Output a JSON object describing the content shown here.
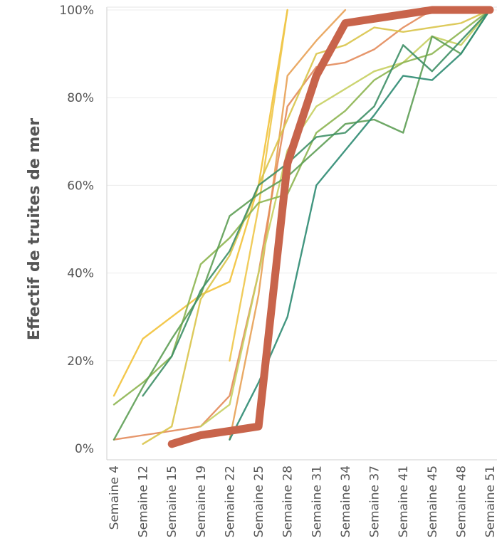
{
  "chart_data": {
    "type": "line",
    "title": "",
    "xlabel": "",
    "ylabel": "Effectif de truites de mer",
    "categories": [
      "Semaine 4",
      "Semaine 12",
      "Semaine 15",
      "Semaine 19",
      "Semaine 22",
      "Semaine 25",
      "Semaine 28",
      "Semaine 31",
      "Semaine 34",
      "Semaine 37",
      "Semaine 41",
      "Semaine 45",
      "Semaine 48",
      "Semaine 51"
    ],
    "ylim": [
      0,
      100
    ],
    "y_tick_labels": [
      "0%",
      "20%",
      "40%",
      "60%",
      "80%",
      "100%"
    ],
    "y_tick_values": [
      0,
      20,
      40,
      60,
      80,
      100
    ],
    "grid": true,
    "legend": "none",
    "series": [
      {
        "color": "#f2c23a",
        "values": [
          12,
          25,
          30,
          35,
          38,
          60,
          100,
          null,
          null,
          null,
          null,
          null,
          null,
          null
        ]
      },
      {
        "color": "#eec64a",
        "values": [
          null,
          null,
          null,
          null,
          20,
          55,
          100,
          null,
          null,
          null,
          null,
          null,
          null,
          null
        ]
      },
      {
        "color": "#e8a155",
        "values": [
          null,
          null,
          null,
          null,
          2,
          35,
          85,
          93,
          100,
          null,
          null,
          null,
          null,
          null
        ]
      },
      {
        "color": "#e38b5b",
        "values": [
          2,
          3,
          4,
          5,
          12,
          40,
          78,
          87,
          88,
          91,
          96,
          100,
          100,
          100
        ]
      },
      {
        "color": "#d9c44a",
        "values": [
          null,
          1,
          5,
          34,
          44,
          60,
          75,
          90,
          92,
          96,
          95,
          96,
          97,
          100
        ]
      },
      {
        "color": "#c7cf60",
        "values": [
          null,
          null,
          null,
          5,
          10,
          40,
          68,
          78,
          82,
          86,
          88,
          94,
          92,
          100
        ]
      },
      {
        "color": "#8db551",
        "values": [
          10,
          15,
          21,
          42,
          48,
          56,
          58,
          72,
          77,
          84,
          88,
          90,
          95,
          100
        ]
      },
      {
        "color": "#5e9e55",
        "values": [
          2,
          14,
          25,
          35,
          53,
          58,
          62,
          68,
          74,
          75,
          72,
          94,
          90,
          100
        ]
      },
      {
        "color": "#3e8f66",
        "values": [
          null,
          12,
          21,
          36,
          45,
          60,
          65,
          71,
          72,
          78,
          92,
          86,
          93,
          100
        ]
      },
      {
        "color": "#2e8b72",
        "values": [
          null,
          null,
          null,
          null,
          2,
          15,
          30,
          60,
          68,
          76,
          85,
          84,
          90,
          100
        ]
      },
      {
        "color": "#c8644b",
        "highlight": true,
        "values": [
          null,
          null,
          1,
          3,
          4,
          5,
          65,
          85,
          97,
          98,
          99,
          100,
          100,
          100
        ]
      }
    ]
  }
}
